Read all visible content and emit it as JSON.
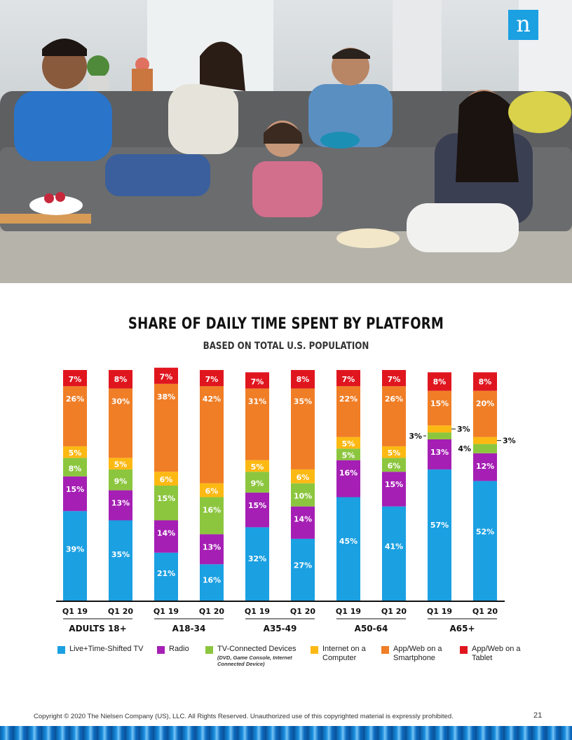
{
  "brand": {
    "logo_letter": "n",
    "color": "#1ba0e2"
  },
  "photo": {
    "description_icon": "family-photo"
  },
  "chart": {
    "title": "SHARE OF DAILY TIME SPENT BY PLATFORM",
    "subtitle": "BASED ON TOTAL U.S. POPULATION"
  },
  "chart_data": {
    "type": "bar",
    "stacked": true,
    "percent": true,
    "title": "SHARE OF DAILY TIME SPENT BY PLATFORM",
    "subtitle": "BASED ON TOTAL U.S. POPULATION",
    "categories": [
      "Q1 19",
      "Q1 20",
      "Q1 19",
      "Q1 20",
      "Q1 19",
      "Q1 20",
      "Q1 19",
      "Q1 20",
      "Q1 19",
      "Q1 20"
    ],
    "groups": [
      "ADULTS 18+",
      "A18-34",
      "A35-49",
      "A50-64",
      "A65+"
    ],
    "series": [
      {
        "name": "Live+Time-Shifted TV",
        "color": "#1ba0e2",
        "values": [
          39,
          35,
          21,
          16,
          32,
          27,
          45,
          41,
          57,
          52
        ]
      },
      {
        "name": "Radio",
        "color": "#a51fb4",
        "values": [
          15,
          13,
          14,
          13,
          15,
          14,
          16,
          15,
          13,
          12
        ]
      },
      {
        "name": "TV-Connected Devices",
        "note": "(DVD, Game Console, Internet Connected Device)",
        "color": "#8cc63f",
        "values": [
          8,
          9,
          15,
          16,
          9,
          10,
          5,
          6,
          3,
          4
        ]
      },
      {
        "name": "Internet on a Computer",
        "color": "#fdb913",
        "values": [
          5,
          5,
          6,
          6,
          5,
          6,
          5,
          5,
          3,
          3
        ]
      },
      {
        "name": "App/Web on a Smartphone",
        "color": "#f07e26",
        "values": [
          26,
          30,
          38,
          42,
          31,
          35,
          22,
          26,
          15,
          20
        ]
      },
      {
        "name": "App/Web on a Tablet",
        "color": "#e0161f",
        "values": [
          7,
          8,
          7,
          7,
          7,
          8,
          7,
          7,
          8,
          8
        ]
      }
    ],
    "legend_position": "bottom",
    "grid": false
  },
  "footer": {
    "copyright": "Copyright © 2020 The Nielsen Company (US), LLC. All Rights Reserved. Unauthorized use of this copyrighted material is expressly prohibited.",
    "page": "21"
  }
}
